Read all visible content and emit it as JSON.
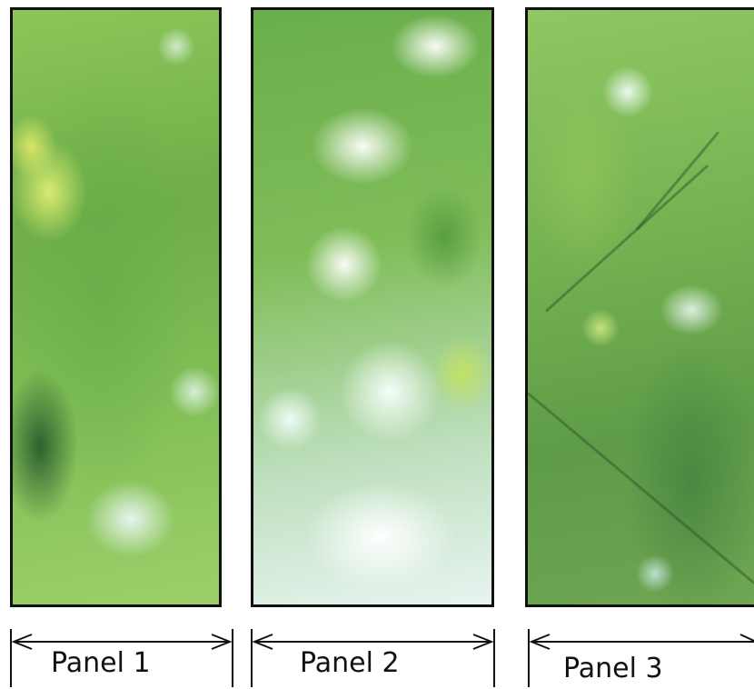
{
  "panels": [
    {
      "id": "panel-1",
      "label": "Panel 1",
      "image": "green-foliage-photo"
    },
    {
      "id": "panel-2",
      "label": "Panel 2",
      "image": "green-foliage-photo-bright-sky"
    },
    {
      "id": "panel-3",
      "label": "Panel 3",
      "image": "green-foliage-photo-with-branches"
    }
  ],
  "colors": {
    "frame": "#111111",
    "foliage": "#7dbc53",
    "background": "#ffffff"
  }
}
